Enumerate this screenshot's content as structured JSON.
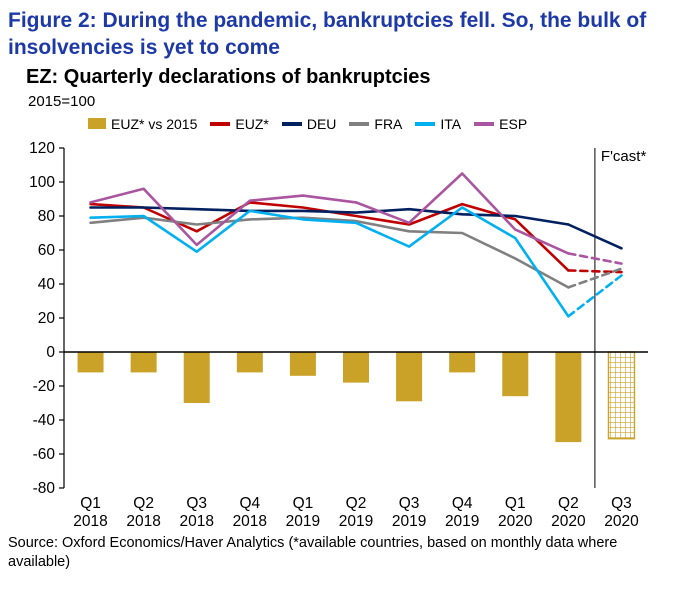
{
  "figure": {
    "title": "Figure 2: During the pandemic, bankruptcies fell. So, the bulk of insolvencies is yet to come",
    "subtitle": "EZ: Quarterly declarations of bankruptcies",
    "index_note": "2015=100",
    "forecast_label": "F'cast*",
    "source": "Source: Oxford Economics/Haver Analytics (*available countries, based on monthly data where available)"
  },
  "colors": {
    "title_blue": "#1d39a8",
    "bar_gold": "#C9A227",
    "euz_red": "#C00000",
    "deu_navy": "#002060",
    "fra_gray": "#808080",
    "ita_cyan": "#00B0F0",
    "esp_purple": "#A9559F",
    "axis": "#000000"
  },
  "chart_data": {
    "type": "bar+line combo",
    "title": "EZ: Quarterly declarations of bankruptcies",
    "index_base": "2015=100",
    "categories": [
      "Q1 2018",
      "Q2 2018",
      "Q3 2018",
      "Q4 2018",
      "Q1 2019",
      "Q2 2019",
      "Q3 2019",
      "Q4 2019",
      "Q1 2020",
      "Q2 2020",
      "Q3 2020"
    ],
    "ylim": [
      -80,
      120
    ],
    "yticks": [
      120,
      100,
      80,
      60,
      40,
      20,
      0,
      -20,
      -40,
      -60,
      -80
    ],
    "grid": "off",
    "legend_position": "top",
    "forecast_from_index": 10,
    "forecast_label": "F'cast*",
    "bar_series": {
      "name": "EUZ* vs 2015",
      "color": "#C9A227",
      "values": [
        -12,
        -12,
        -30,
        -12,
        -14,
        -18,
        -29,
        -12,
        -26,
        -53,
        -51
      ]
    },
    "line_series": [
      {
        "name": "EUZ*",
        "color": "#C00000",
        "values": [
          87,
          85,
          71,
          88,
          85,
          80,
          75,
          87,
          78,
          48,
          47
        ],
        "forecast_dashed": true
      },
      {
        "name": "DEU",
        "color": "#002060",
        "values": [
          85,
          85,
          84,
          83,
          83,
          82,
          84,
          81,
          80,
          75,
          61
        ],
        "forecast_dashed": false
      },
      {
        "name": "FRA",
        "color": "#808080",
        "values": [
          76,
          79,
          75,
          78,
          79,
          77,
          71,
          70,
          55,
          38,
          49
        ],
        "forecast_dashed": true
      },
      {
        "name": "ITA",
        "color": "#00B0F0",
        "values": [
          79,
          80,
          59,
          83,
          78,
          76,
          62,
          85,
          67,
          21,
          45
        ],
        "forecast_dashed": true
      },
      {
        "name": "ESP",
        "color": "#A9559F",
        "values": [
          88,
          96,
          63,
          89,
          92,
          88,
          76,
          105,
          72,
          58,
          52
        ],
        "forecast_dashed": true
      }
    ],
    "legend": [
      "EUZ* vs 2015",
      "EUZ*",
      "DEU",
      "FRA",
      "ITA",
      "ESP"
    ]
  }
}
